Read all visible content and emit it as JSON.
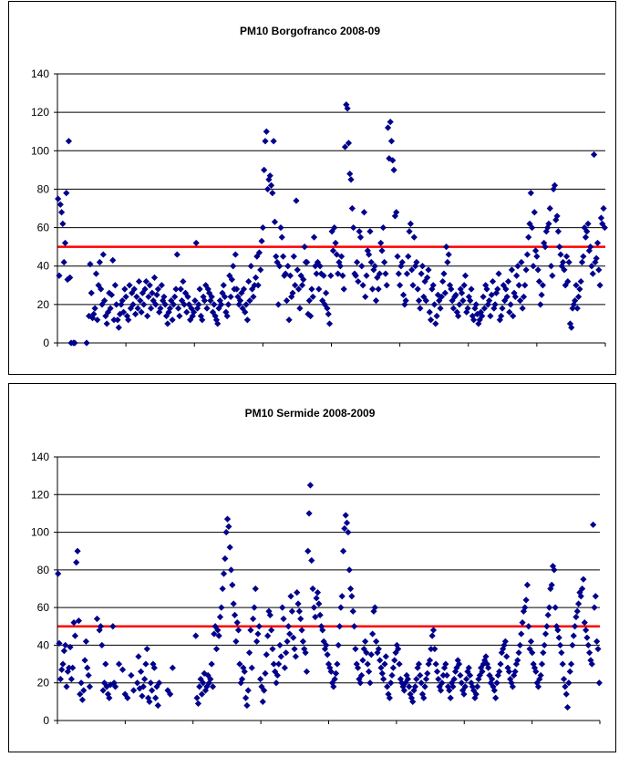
{
  "chart_data": [
    {
      "type": "scatter",
      "title": "PM10 Borgofranco 2008-09",
      "xlabel": "",
      "ylabel": "",
      "ylim": [
        0,
        140
      ],
      "yticks": [
        0,
        20,
        40,
        60,
        80,
        100,
        120,
        140
      ],
      "xlim": [
        0,
        375
      ],
      "x_tick_count": 8,
      "grid": "horizontal",
      "legend": "none",
      "marker": "diamond",
      "marker_color": "#00008B",
      "limit_line": {
        "y": 50,
        "color": "#FF0000"
      },
      "values": [
        75,
        35,
        72,
        68,
        62,
        42,
        52,
        78,
        33,
        105,
        34,
        0,
        null,
        0,
        0,
        null,
        null,
        null,
        null,
        null,
        null,
        null,
        null,
        null,
        0,
        null,
        14,
        41,
        26,
        13,
        15,
        18,
        36,
        12,
        30,
        42,
        28,
        20,
        46,
        22,
        14,
        10,
        16,
        26,
        18,
        25,
        43,
        12,
        30,
        20,
        12,
        8,
        15,
        20,
        22,
        16,
        28,
        24,
        14,
        12,
        30,
        18,
        26,
        20,
        28,
        15,
        24,
        18,
        32,
        22,
        16,
        26,
        20,
        28,
        32,
        14,
        24,
        30,
        18,
        26,
        22,
        34,
        20,
        25,
        28,
        16,
        18,
        30,
        22,
        24,
        20,
        14,
        10,
        16,
        18,
        22,
        12,
        20,
        24,
        28,
        46,
        18,
        14,
        28,
        22,
        32,
        20,
        26,
        16,
        24,
        20,
        12,
        18,
        14,
        16,
        22,
        52,
        18,
        20,
        28,
        14,
        12,
        24,
        22,
        30,
        18,
        28,
        26,
        22,
        24,
        16,
        20,
        14,
        12,
        10,
        18,
        22,
        20,
        26,
        30,
        24,
        16,
        14,
        20,
        35,
        24,
        33,
        40,
        28,
        46,
        28,
        24,
        20,
        22,
        26,
        18,
        28,
        16,
        20,
        12,
        32,
        22,
        40,
        28,
        24,
        30,
        34,
        45,
        30,
        47,
        38,
        53,
        60,
        90,
        105,
        110,
        80,
        85,
        87,
        82,
        78,
        105,
        63,
        45,
        42,
        20,
        40,
        60,
        55,
        45,
        35,
        36,
        22,
        40,
        12,
        35,
        24,
        26,
        45,
        30,
        74,
        38,
        28,
        18,
        35,
        30,
        33,
        50,
        42,
        42,
        15,
        22,
        14,
        28,
        24,
        55,
        40,
        36,
        42,
        28,
        40,
        36,
        22,
        35,
        20,
        26,
        18,
        15,
        10,
        35,
        58,
        48,
        60,
        52,
        46,
        36,
        42,
        40,
        45,
        35,
        28,
        102,
        124,
        122,
        104,
        88,
        85,
        70,
        60,
        36,
        35,
        42,
        32,
        58,
        55,
        40,
        30,
        68,
        24,
        35,
        48,
        46,
        58,
        42,
        28,
        38,
        40,
        22,
        34,
        28,
        36,
        52,
        48,
        60,
        42,
        36,
        30,
        112,
        96,
        115,
        105,
        95,
        90,
        66,
        68,
        45,
        36,
        30,
        40,
        42,
        25,
        20,
        22,
        36,
        45,
        58,
        62,
        38,
        30,
        55,
        40,
        42,
        28,
        22,
        18,
        36,
        40,
        24,
        32,
        22,
        34,
        38,
        16,
        12,
        28,
        30,
        20,
        10,
        14,
        25,
        22,
        18,
        24,
        32,
        36,
        26,
        50,
        42,
        46,
        30,
        28,
        22,
        18,
        24,
        25,
        16,
        14,
        20,
        28,
        26,
        22,
        30,
        35,
        16,
        18,
        24,
        22,
        28,
        14,
        12,
        18,
        20,
        15,
        10,
        12,
        16,
        14,
        24,
        18,
        30,
        28,
        20,
        22,
        14,
        25,
        32,
        18,
        20,
        26,
        28,
        36,
        12,
        14,
        18,
        30,
        22,
        28,
        24,
        32,
        16,
        20,
        38,
        14,
        26,
        24,
        35,
        40,
        30,
        22,
        42,
        18,
        24,
        30,
        38,
        46,
        55,
        62,
        78,
        60,
        40,
        68,
        48,
        45,
        38,
        32,
        20,
        25,
        30,
        52,
        50,
        58,
        60,
        62,
        70,
        40,
        35,
        80,
        82,
        64,
        66,
        58,
        50,
        46,
        40,
        42,
        38,
        30,
        45,
        32,
        42,
        10,
        8,
        18,
        20,
        22,
        30,
        18,
        24,
        28,
        32,
        42,
        45,
        60,
        55,
        58,
        62,
        48,
        50,
        40,
        36,
        98,
        42,
        44,
        52,
        38,
        30,
        65,
        62,
        70,
        60
      ]
    },
    {
      "type": "scatter",
      "title": "PM10 Sermide 2008-2009",
      "xlabel": "",
      "ylabel": "",
      "ylim": [
        0,
        140
      ],
      "yticks": [
        0,
        20,
        40,
        60,
        80,
        100,
        120,
        140
      ],
      "xlim": [
        0,
        375
      ],
      "x_tick_count": 8,
      "grid": "horizontal",
      "legend": "none",
      "marker": "diamond",
      "marker_color": "#00008B",
      "limit_line": {
        "y": 50,
        "color": "#FF0000"
      },
      "values": [
        78,
        41,
        22,
        27,
        30,
        37,
        40,
        18,
        26,
        28,
        39,
        22,
        28,
        52,
        45,
        84,
        90,
        53,
        14,
        20,
        11,
        16,
        32,
        42,
        28,
        24,
        18,
        null,
        null,
        null,
        null,
        null,
        54,
        null,
        48,
        50,
        40,
        16,
        20,
        30,
        18,
        14,
        12,
        19,
        null,
        50,
        20,
        18,
        null,
        null,
        30,
        null,
        null,
        27,
        null,
        14,
        null,
        12,
        null,
        null,
        24,
        null,
        16,
        null,
        null,
        20,
        34,
        17,
        26,
        13,
        18,
        22,
        30,
        38,
        12,
        10,
        20,
        16,
        30,
        28,
        12,
        18,
        8,
        20,
        null,
        null,
        null,
        null,
        null,
        null,
        16,
        null,
        14,
        null,
        28,
        null,
        null,
        null,
        null,
        null,
        null,
        null,
        null,
        null,
        null,
        null,
        null,
        null,
        null,
        null,
        null,
        null,
        null,
        45,
        12,
        9,
        18,
        22,
        14,
        20,
        25,
        16,
        18,
        24,
        20,
        22,
        30,
        18,
        46,
        50,
        38,
        48,
        45,
        55,
        60,
        70,
        78,
        86,
        100,
        107,
        103,
        92,
        80,
        72,
        62,
        56,
        42,
        52,
        48,
        30,
        20,
        22,
        28,
        26,
        12,
        8,
        16,
        36,
        48,
        28,
        54,
        60,
        70,
        42,
        46,
        50,
        22,
        18,
        10,
        16,
        25,
        35,
        45,
        58,
        56,
        48,
        38,
        30,
        26,
        20,
        24,
        30,
        40,
        34,
        60,
        54,
        28,
        36,
        42,
        50,
        46,
        66,
        58,
        44,
        38,
        34,
        68,
        62,
        58,
        54,
        48,
        42,
        38,
        36,
        26,
        90,
        110,
        125,
        85,
        70,
        60,
        55,
        65,
        68,
        62,
        56,
        50,
        48,
        42,
        38,
        40,
        35,
        30,
        28,
        26,
        20,
        18,
        22,
        25,
        30,
        40,
        50,
        60,
        66,
        90,
        102,
        109,
        105,
        100,
        80,
        70,
        66,
        58,
        50,
        38,
        30,
        28,
        22,
        20,
        24,
        32,
        38,
        42,
        36,
        30,
        26,
        20,
        35,
        46,
        58,
        60,
        42,
        36,
        38,
        32,
        28,
        25,
        22,
        30,
        34,
        18,
        14,
        12,
        20,
        24,
        28,
        32,
        36,
        40,
        38,
        30,
        22,
        20,
        18,
        16,
        20,
        24,
        22,
        18,
        14,
        12,
        10,
        16,
        18,
        22,
        28,
        30,
        24,
        20,
        14,
        12,
        18,
        22,
        25,
        30,
        32,
        38,
        45,
        48,
        38,
        30,
        26,
        22,
        18,
        16,
        20,
        24,
        28,
        30,
        24,
        18,
        16,
        12,
        20,
        18,
        22,
        26,
        28,
        32,
        30,
        24,
        20,
        16,
        14,
        18,
        22,
        26,
        28,
        24,
        20,
        18,
        16,
        12,
        14,
        18,
        22,
        24,
        28,
        26,
        30,
        32,
        34,
        30,
        28,
        24,
        20,
        22,
        18,
        16,
        12,
        20,
        24,
        26,
        30,
        36,
        38,
        40,
        42,
        34,
        28,
        26,
        22,
        20,
        18,
        24,
        26,
        30,
        32,
        36,
        40,
        46,
        52,
        58,
        60,
        64,
        72,
        50,
        38,
        42,
        36,
        30,
        28,
        26,
        20,
        18,
        22,
        24,
        30,
        36,
        40,
        46,
        50,
        56,
        60,
        70,
        72,
        82,
        80,
        60,
        50,
        48,
        44,
        40,
        36,
        30,
        22,
        18,
        14,
        7,
        20,
        26,
        30,
        40,
        45,
        50,
        55,
        58,
        62,
        68,
        66,
        70,
        75,
        52,
        48,
        44,
        40,
        36,
        32,
        30,
        104,
        60,
        66,
        42,
        38,
        20
      ]
    }
  ]
}
